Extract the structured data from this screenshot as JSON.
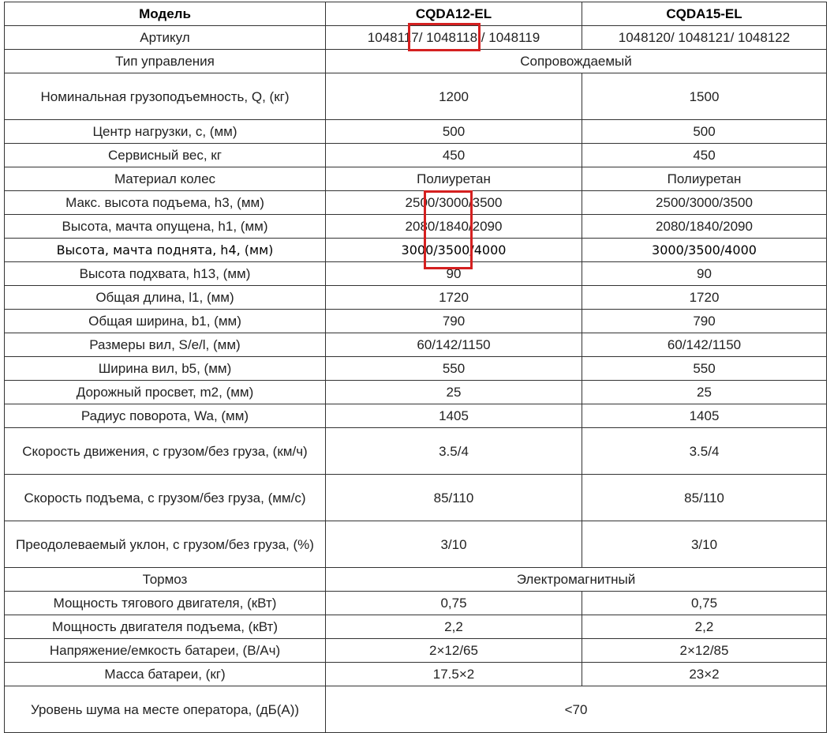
{
  "table": {
    "rows": [
      {
        "cells": [
          "Модель",
          "CQDA12-EL",
          "CQDA15-EL"
        ],
        "kind": "hdr"
      },
      {
        "cells": [
          "Артикул",
          "1048117/ 1048118 / 1048119",
          "1048120/ 1048121/ 1048122"
        ]
      },
      {
        "cells": [
          "Тип управления",
          "Сопровождаемый"
        ]
      },
      {
        "cells": [
          "Номинальная грузоподъемность, Q, (кг)",
          "1200",
          "1500"
        ],
        "kind": "tall"
      },
      {
        "cells": [
          "Центр нагрузки, c, (мм)",
          "500",
          "500"
        ]
      },
      {
        "cells": [
          "Сервисный вес, кг",
          "450",
          "450"
        ]
      },
      {
        "cells": [
          "Материал колес",
          "Полиуретан",
          "Полиуретан"
        ]
      },
      {
        "cells": [
          "Макс. высота подъема, h3, (мм)",
          "2500/3000/3500",
          "2500/3000/3500"
        ]
      },
      {
        "cells": [
          "Высота, мачта опущена, h1, (мм)",
          "2080/1840/2090",
          "2080/1840/2090"
        ]
      },
      {
        "cells": [
          "Высота, мачта поднята, h4, (мм)",
          "3000/3500/4000",
          "3000/3500/4000"
        ],
        "kind": "alt"
      },
      {
        "cells": [
          "Высота подхвата, h13, (мм)",
          "90",
          "90"
        ]
      },
      {
        "cells": [
          "Общая длина, l1, (мм)",
          "1720",
          "1720"
        ]
      },
      {
        "cells": [
          "Общая ширина, b1, (мм)",
          "790",
          "790"
        ]
      },
      {
        "cells": [
          "Размеры вил, S/e/l, (мм)",
          "60/142/1150",
          "60/142/1150"
        ]
      },
      {
        "cells": [
          "Ширина вил, b5, (мм)",
          "550",
          "550"
        ]
      },
      {
        "cells": [
          "Дорожный просвет, m2, (мм)",
          "25",
          "25"
        ]
      },
      {
        "cells": [
          "Радиус поворота, Wa, (мм)",
          "1405",
          "1405"
        ]
      },
      {
        "cells": [
          "Скорость движения, с грузом/без груза, (км/ч)",
          "3.5/4",
          "3.5/4"
        ],
        "kind": "tall"
      },
      {
        "cells": [
          "Скорость подъема, с грузом/без груза, (мм/с)",
          "85/110",
          "85/110"
        ],
        "kind": "tall"
      },
      {
        "cells": [
          "Преодолеваемый уклон, с грузом/без груза, (%)",
          "3/10",
          "3/10"
        ],
        "kind": "tall"
      },
      {
        "cells": [
          "Тормоз",
          "Электромагнитный"
        ]
      },
      {
        "cells": [
          "Мощность тягового двигателя, (кВт)",
          "0,75",
          "0,75"
        ]
      },
      {
        "cells": [
          "Мощность двигателя подъема, (кВт)",
          "2,2",
          "2,2"
        ]
      },
      {
        "cells": [
          "Напряжение/емкость батареи, (В/Ач)",
          "2×12/65",
          "2×12/85"
        ]
      },
      {
        "cells": [
          "Масса батареи, (кг)",
          "17.5×2",
          "23×2"
        ]
      },
      {
        "cells": [
          "Уровень шума на месте оператора, (дБ(А))",
          "<70"
        ],
        "kind": "tall"
      }
    ]
  },
  "highlight_color": "#d42020"
}
